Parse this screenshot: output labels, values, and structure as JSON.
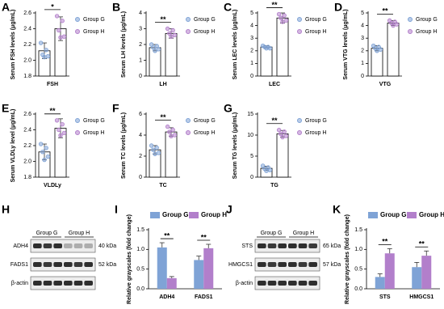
{
  "chart_data": [
    {
      "panel": "A",
      "type": "bar",
      "ylabel": "Serum FSH levels (μg/mL)",
      "categories": [
        "FSH"
      ],
      "ylim": [
        1.8,
        2.6
      ],
      "yticks": [
        1.8,
        {
          "value": 2,
          "label": "2.0"
        },
        2.2,
        2.4,
        2.6
      ],
      "bar_fill": "#ffffff",
      "legend": "right",
      "significance": [
        "*"
      ],
      "series": [
        {
          "name": "Group G",
          "color": "#7fa3d6",
          "values": [
            2.12
          ],
          "errors": [
            0.1
          ],
          "points": [
            [
              2.22,
              2.13,
              2.07,
              2.05,
              2.04
            ]
          ]
        },
        {
          "name": "Group H",
          "color": "#b27fcb",
          "values": [
            2.4
          ],
          "errors": [
            0.15
          ],
          "points": [
            [
              2.56,
              2.5,
              2.38,
              2.3,
              2.29
            ]
          ]
        }
      ]
    },
    {
      "panel": "B",
      "type": "bar",
      "ylabel": "Serum LH levels (μg/mL)",
      "categories": [
        "LH"
      ],
      "ylim": [
        0,
        4
      ],
      "yticks": [
        0,
        1,
        2,
        3,
        4
      ],
      "bar_fill": "#ffffff",
      "legend": "right",
      "significance": [
        "**"
      ],
      "series": [
        {
          "name": "Group G",
          "color": "#7fa3d6",
          "values": [
            1.8
          ],
          "errors": [
            0.2
          ],
          "points": [
            [
              2.0,
              1.9,
              1.8,
              1.7,
              1.6
            ]
          ]
        },
        {
          "name": "Group H",
          "color": "#b27fcb",
          "values": [
            2.7
          ],
          "errors": [
            0.3
          ],
          "points": [
            [
              3.0,
              2.9,
              2.7,
              2.6,
              2.5
            ]
          ]
        }
      ]
    },
    {
      "panel": "C",
      "type": "bar",
      "ylabel": "Serum LEC levels (μg/mL)",
      "categories": [
        "LEC"
      ],
      "ylim": [
        0,
        5
      ],
      "yticks": [
        0,
        1,
        2,
        3,
        4,
        5
      ],
      "bar_fill": "#ffffff",
      "legend": "right",
      "significance": [
        "**"
      ],
      "series": [
        {
          "name": "Group G",
          "color": "#7fa3d6",
          "values": [
            2.3
          ],
          "errors": [
            0.1
          ],
          "points": [
            [
              2.4,
              2.3,
              2.3,
              2.2,
              2.2
            ]
          ]
        },
        {
          "name": "Group H",
          "color": "#b27fcb",
          "values": [
            4.6
          ],
          "errors": [
            0.4
          ],
          "points": [
            [
              4.9,
              4.8,
              4.6,
              4.4,
              4.3
            ]
          ]
        }
      ]
    },
    {
      "panel": "D",
      "type": "bar",
      "ylabel": "Serum VTG levels (μg/mL)",
      "categories": [
        "VTG"
      ],
      "ylim": [
        0,
        5
      ],
      "yticks": [
        0,
        1,
        2,
        3,
        4,
        5
      ],
      "bar_fill": "#ffffff",
      "legend": "right",
      "significance": [
        "**"
      ],
      "series": [
        {
          "name": "Group G",
          "color": "#7fa3d6",
          "values": [
            2.2
          ],
          "errors": [
            0.2
          ],
          "points": [
            [
              2.4,
              2.3,
              2.2,
              2.1,
              2.0
            ]
          ]
        },
        {
          "name": "Group H",
          "color": "#b27fcb",
          "values": [
            4.2
          ],
          "errors": [
            0.2
          ],
          "points": [
            [
              4.4,
              4.3,
              4.2,
              4.1,
              4.0
            ]
          ]
        }
      ]
    },
    {
      "panel": "E",
      "type": "bar",
      "ylabel": "Serum VLDLy level (μg/mL)",
      "categories": [
        "VLDLy"
      ],
      "ylim": [
        1.8,
        2.6
      ],
      "yticks": [
        1.8,
        {
          "value": 2,
          "label": "2.0"
        },
        2.2,
        2.4,
        2.6
      ],
      "bar_fill": "#ffffff",
      "legend": "right",
      "significance": [
        "**"
      ],
      "series": [
        {
          "name": "Group G",
          "color": "#7fa3d6",
          "values": [
            2.12
          ],
          "errors": [
            0.1
          ],
          "points": [
            [
              2.22,
              2.17,
              2.12,
              2.06,
              2.02
            ]
          ]
        },
        {
          "name": "Group H",
          "color": "#b27fcb",
          "values": [
            2.42
          ],
          "errors": [
            0.12
          ],
          "points": [
            [
              2.52,
              2.47,
              2.4,
              2.36,
              2.33
            ]
          ]
        }
      ]
    },
    {
      "panel": "F",
      "type": "bar",
      "ylabel": "Serum TC levels (μg/mL)",
      "categories": [
        "TC"
      ],
      "ylim": [
        0,
        6
      ],
      "yticks": [
        0,
        2,
        4,
        6
      ],
      "bar_fill": "#ffffff",
      "legend": "right",
      "significance": [
        "**"
      ],
      "series": [
        {
          "name": "Group G",
          "color": "#7fa3d6",
          "values": [
            2.6
          ],
          "errors": [
            0.4
          ],
          "points": [
            [
              3.0,
              2.8,
              2.6,
              2.3,
              2.2
            ]
          ]
        },
        {
          "name": "Group H",
          "color": "#b27fcb",
          "values": [
            4.3
          ],
          "errors": [
            0.4
          ],
          "points": [
            [
              4.8,
              4.5,
              4.3,
              4.0,
              3.9
            ]
          ]
        }
      ]
    },
    {
      "panel": "G",
      "type": "bar",
      "ylabel": "Serum TG levels (μg/mL)",
      "categories": [
        "TG"
      ],
      "ylim": [
        0,
        15
      ],
      "yticks": [
        0,
        5,
        10,
        15
      ],
      "bar_fill": "#ffffff",
      "legend": "right",
      "significance": [
        "**"
      ],
      "series": [
        {
          "name": "Group G",
          "color": "#7fa3d6",
          "values": [
            2.1
          ],
          "errors": [
            0.5
          ],
          "points": [
            [
              2.7,
              2.3,
              2.0,
              1.7,
              1.5
            ]
          ]
        },
        {
          "name": "Group H",
          "color": "#b27fcb",
          "values": [
            10.3
          ],
          "errors": [
            0.8
          ],
          "points": [
            [
              11.2,
              10.8,
              10.3,
              9.8,
              9.5
            ]
          ]
        }
      ]
    },
    {
      "panel": "I",
      "type": "bar",
      "ylabel": "Relative grayscales (fold change)",
      "categories": [
        "ADH4",
        "FADS1"
      ],
      "ylim": [
        0,
        1.5
      ],
      "yticks": [
        {
          "value": 0,
          "label": "0.0"
        },
        0.5,
        {
          "value": 1,
          "label": "1.0"
        },
        1.5
      ],
      "legend": "top",
      "significance": [
        "**",
        "**"
      ],
      "series": [
        {
          "name": "Group G",
          "color": "#7fa3d6",
          "values": [
            1.05,
            0.73
          ],
          "errors": [
            0.12,
            0.1
          ]
        },
        {
          "name": "Group H",
          "color": "#b27fcb",
          "values": [
            0.27,
            1.03
          ],
          "errors": [
            0.04,
            0.1
          ]
        }
      ]
    },
    {
      "panel": "K",
      "type": "bar",
      "ylabel": "Relative grayscales (fold change)",
      "categories": [
        "STS",
        "HMGCS1"
      ],
      "ylim": [
        0,
        1.5
      ],
      "yticks": [
        {
          "value": 0,
          "label": "0.0"
        },
        0.5,
        {
          "value": 1,
          "label": "1.0"
        },
        1.5
      ],
      "legend": "top",
      "significance": [
        "**",
        "**"
      ],
      "series": [
        {
          "name": "Group G",
          "color": "#7fa3d6",
          "values": [
            0.3,
            0.55
          ],
          "errors": [
            0.08,
            0.12
          ]
        },
        {
          "name": "Group H",
          "color": "#b27fcb",
          "values": [
            0.9,
            0.84
          ],
          "errors": [
            0.12,
            0.12
          ]
        }
      ]
    }
  ],
  "blots": [
    {
      "panel": "H",
      "groups": [
        "Group G",
        "Group H"
      ],
      "rows": [
        {
          "protein": "ADH4",
          "size": "40 kDa"
        },
        {
          "protein": "FADS1",
          "size": "52 kDa"
        },
        {
          "protein": "β-actin"
        }
      ]
    },
    {
      "panel": "J",
      "groups": [
        "Group G",
        "Group H"
      ],
      "rows": [
        {
          "protein": "STS",
          "size": "65 kDa"
        },
        {
          "protein": "HMGCS1",
          "size": "57 kDa"
        },
        {
          "protein": "β-actin"
        }
      ]
    }
  ]
}
